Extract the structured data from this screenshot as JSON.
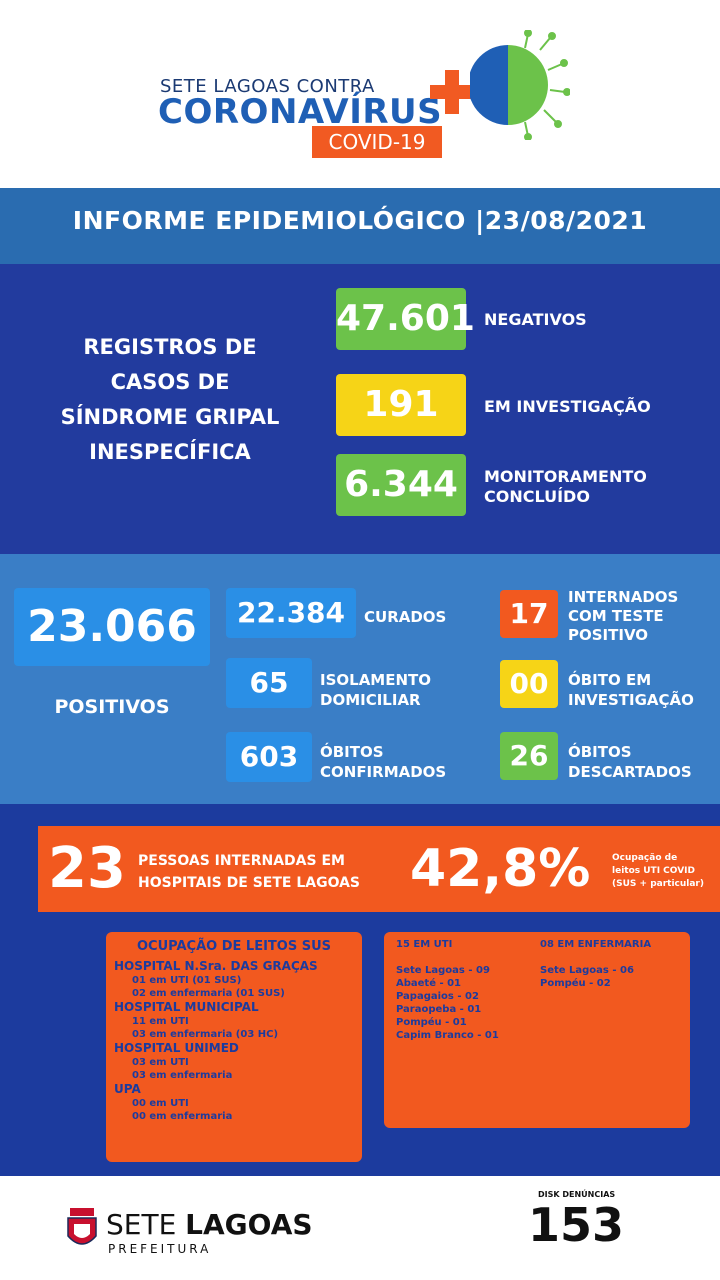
{
  "header": {
    "line1": "SETE LAGOAS CONTRA",
    "line2": "CORONAVÍRUS",
    "line3": "COVID-19"
  },
  "title": "INFORME EPIDEMIOLÓGICO |23/08/2021",
  "registros": {
    "label_lines": [
      "REGISTROS DE",
      "CASOS DE",
      "SÍNDROME GRIPAL",
      "INESPECÍFICA"
    ],
    "items": [
      {
        "value": "47.601",
        "label": "NEGATIVOS"
      },
      {
        "value": "191",
        "label": "EM INVESTIGAÇÃO"
      },
      {
        "value": "6.344",
        "label_lines": [
          "MONITORAMENTO",
          "CONCLUÍDO"
        ]
      }
    ]
  },
  "positivos": {
    "value": "23.066",
    "label": "POSITIVOS",
    "middle": [
      {
        "value": "22.384",
        "label_lines": [
          "CURADOS"
        ]
      },
      {
        "value": "65",
        "label_lines": [
          "ISOLAMENTO",
          "DOMICILIAR"
        ]
      },
      {
        "value": "603",
        "label_lines": [
          "ÓBITOS",
          "CONFIRMADOS"
        ]
      }
    ],
    "right": [
      {
        "value": "17",
        "label_lines": [
          "INTERNADOS",
          "COM TESTE",
          "POSITIVO"
        ]
      },
      {
        "value": "00",
        "label_lines": [
          "ÓBITO EM",
          "INVESTIGAÇÃO"
        ]
      },
      {
        "value": "26",
        "label_lines": [
          "ÓBITOS",
          "DESCARTADOS"
        ]
      }
    ]
  },
  "internadas": {
    "value": "23",
    "label_lines": [
      "PESSOAS INTERNADAS EM",
      "HOSPITAIS DE SETE LAGOAS"
    ],
    "percent": "42,8%",
    "percent_lines": [
      "Ocupação de",
      "leitos UTI COVID",
      "(SUS + particular)"
    ]
  },
  "sus": {
    "title": "OCUPAÇÃO DE LEITOS SUS",
    "lines": [
      {
        "text": "HOSPITAL N.Sra. DAS GRAÇAS",
        "kind": "h"
      },
      {
        "text": "01 em UTI (01 SUS)",
        "kind": "s"
      },
      {
        "text": "02 em enfermaria (01 SUS)",
        "kind": "s"
      },
      {
        "text": "HOSPITAL MUNICIPAL",
        "kind": "h"
      },
      {
        "text": "11 em UTI",
        "kind": "s"
      },
      {
        "text": "03 em enfermaria (03 HC)",
        "kind": "s"
      },
      {
        "text": "HOSPITAL UNIMED",
        "kind": "h"
      },
      {
        "text": "03 em UTI",
        "kind": "s"
      },
      {
        "text": "03 em enfermaria",
        "kind": "s"
      },
      {
        "text": "UPA",
        "kind": "h"
      },
      {
        "text": "00 em UTI",
        "kind": "s"
      },
      {
        "text": "00 em enfermaria",
        "kind": "s"
      }
    ]
  },
  "uti": {
    "title": "15 EM UTI",
    "lines": [
      "Sete Lagoas - 09",
      "Abaeté - 01",
      "Papagaios - 02",
      "Paraopeba - 01",
      "Pompéu - 01",
      "Capim Branco - 01"
    ]
  },
  "enfermaria": {
    "title": "08 EM ENFERMARIA",
    "lines": [
      "Sete Lagoas - 06",
      "Pompéu - 02"
    ]
  },
  "footer": {
    "brand1": "SETE",
    "brand2": "LAGOAS",
    "brand3": "PREFEITURA",
    "disk_label": "DISK DENÚNCIAS",
    "disk_number": "153"
  },
  "colors": {
    "green": "#6cc24a",
    "yellow": "#f6d417",
    "orange": "#f2591f",
    "blue": "#2a8fe6",
    "navy": "#1c3b9e"
  }
}
